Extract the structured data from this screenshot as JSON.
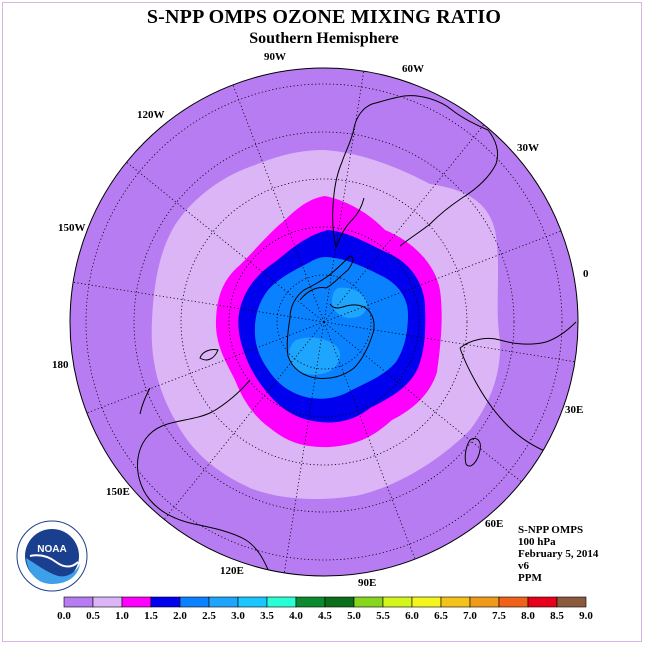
{
  "title": "S-NPP OMPS OZONE MIXING RATIO",
  "subtitle": "Southern Hemisphere",
  "longitude_labels": {
    "lon_90W": "90W",
    "lon_60W": "60W",
    "lon_30W": "30W",
    "lon_0": "0",
    "lon_30E": "30E",
    "lon_60E": "60E",
    "lon_90E": "90E",
    "lon_120E": "120E",
    "lon_150E": "150E",
    "lon_180": "180",
    "lon_150W": "150W",
    "lon_120W": "120W"
  },
  "info": {
    "instrument": "S-NPP OMPS",
    "level": "100 hPa",
    "date": "February 5, 2014",
    "version": "v6",
    "units": "PPM"
  },
  "logo_text": "NOAA",
  "colorbar": {
    "colors": [
      "#b87cf2",
      "#dcb5f7",
      "#ff00ff",
      "#0000ee",
      "#0a82ff",
      "#1ea6ff",
      "#19c6ff",
      "#29ffd5",
      "#0c8b2e",
      "#0b6e1a",
      "#85d61c",
      "#d4f51c",
      "#f4f51c",
      "#f5c21a",
      "#f09a1a",
      "#f0621a",
      "#e6001a",
      "#8b5a3c"
    ],
    "tick_labels": [
      "0.0",
      "0.5",
      "1.0",
      "1.5",
      "2.0",
      "2.5",
      "3.0",
      "3.5",
      "4.0",
      "4.5",
      "5.0",
      "5.5",
      "6.0",
      "6.5",
      "7.0",
      "7.5",
      "8.0",
      "8.5",
      "9.0"
    ]
  },
  "map": {
    "background_color": "#b87cf2",
    "contour_colors": {
      "level_0_5": "#dcb5f7",
      "level_1_0": "#ff00ff",
      "level_1_5": "#0000ee",
      "level_2_0": "#0a82ff",
      "level_2_5": "#1ea6ff"
    }
  }
}
